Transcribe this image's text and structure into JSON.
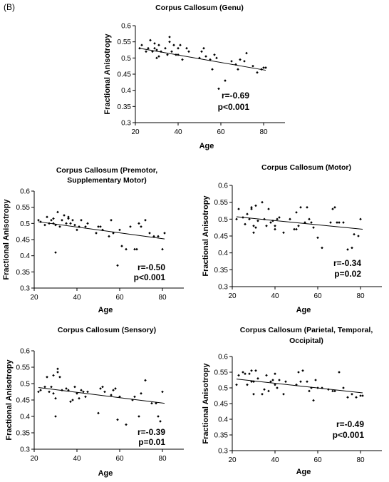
{
  "figure": {
    "panel_label": "(B)"
  },
  "chart_data": [
    {
      "type": "scatter",
      "title": [
        "Corpus Callosum (Genu)"
      ],
      "xlabel": "Age",
      "ylabel": "Fractional Anisotropy",
      "xlim": [
        20,
        90
      ],
      "ylim": [
        0.3,
        0.6
      ],
      "xticks": [
        20,
        40,
        60,
        80
      ],
      "yticks": [
        0.3,
        0.35,
        0.4,
        0.45,
        0.5,
        0.55,
        0.6
      ],
      "yticklabels": [
        "0.3",
        "0.35",
        "0.4",
        "0.45",
        "0.5",
        "0.55",
        "0.6"
      ],
      "stats": [
        "r=-0.69",
        "p<0.001"
      ],
      "trendline": {
        "x": [
          22,
          81
        ],
        "y": [
          0.53,
          0.462
        ]
      },
      "points": [
        [
          22,
          0.53
        ],
        [
          23,
          0.54
        ],
        [
          25,
          0.52
        ],
        [
          26,
          0.53
        ],
        [
          27,
          0.555
        ],
        [
          28,
          0.52
        ],
        [
          29,
          0.53
        ],
        [
          29,
          0.545
        ],
        [
          30,
          0.525
        ],
        [
          30,
          0.5
        ],
        [
          31,
          0.54
        ],
        [
          31,
          0.505
        ],
        [
          32,
          0.52
        ],
        [
          34,
          0.53
        ],
        [
          35,
          0.51
        ],
        [
          36,
          0.565
        ],
        [
          36,
          0.55
        ],
        [
          37,
          0.52
        ],
        [
          38,
          0.54
        ],
        [
          39,
          0.51
        ],
        [
          40,
          0.51
        ],
        [
          40,
          0.53
        ],
        [
          41,
          0.54
        ],
        [
          42,
          0.495
        ],
        [
          44,
          0.53
        ],
        [
          45,
          0.52
        ],
        [
          50,
          0.5
        ],
        [
          51,
          0.52
        ],
        [
          52,
          0.53
        ],
        [
          53,
          0.505
        ],
        [
          55,
          0.495
        ],
        [
          56,
          0.465
        ],
        [
          57,
          0.51
        ],
        [
          58,
          0.5
        ],
        [
          59,
          0.405
        ],
        [
          62,
          0.43
        ],
        [
          65,
          0.49
        ],
        [
          67,
          0.48
        ],
        [
          68,
          0.465
        ],
        [
          69,
          0.495
        ],
        [
          71,
          0.49
        ],
        [
          72,
          0.515
        ],
        [
          75,
          0.475
        ],
        [
          77,
          0.455
        ],
        [
          79,
          0.465
        ],
        [
          80,
          0.47
        ],
        [
          81,
          0.47
        ]
      ]
    },
    {
      "type": "scatter",
      "title": [
        "Corpus Callosum (Premotor,",
        "Supplementary Motor)"
      ],
      "xlabel": "Age",
      "ylabel": "Fractional Anisotropy",
      "xlim": [
        20,
        90
      ],
      "ylim": [
        0.3,
        0.6
      ],
      "xticks": [
        20,
        40,
        60,
        80
      ],
      "yticks": [
        0.3,
        0.35,
        0.4,
        0.45,
        0.5,
        0.55,
        0.6
      ],
      "yticklabels": [
        "0.3",
        "0.35",
        "0.4",
        "0.45",
        "0.5",
        "0.55",
        "0.6"
      ],
      "stats": [
        "r=-0.50",
        "p<0.001"
      ],
      "trendline": {
        "x": [
          22,
          81
        ],
        "y": [
          0.505,
          0.452
        ]
      },
      "points": [
        [
          22,
          0.51
        ],
        [
          23,
          0.505
        ],
        [
          25,
          0.495
        ],
        [
          26,
          0.52
        ],
        [
          27,
          0.5
        ],
        [
          28,
          0.51
        ],
        [
          29,
          0.515
        ],
        [
          29,
          0.5
        ],
        [
          30,
          0.495
        ],
        [
          30,
          0.41
        ],
        [
          31,
          0.535
        ],
        [
          32,
          0.49
        ],
        [
          33,
          0.51
        ],
        [
          34,
          0.525
        ],
        [
          35,
          0.5
        ],
        [
          36,
          0.515
        ],
        [
          36,
          0.52
        ],
        [
          37,
          0.5
        ],
        [
          38,
          0.51
        ],
        [
          39,
          0.495
        ],
        [
          40,
          0.48
        ],
        [
          41,
          0.49
        ],
        [
          42,
          0.51
        ],
        [
          44,
          0.49
        ],
        [
          45,
          0.5
        ],
        [
          49,
          0.47
        ],
        [
          50,
          0.49
        ],
        [
          51,
          0.49
        ],
        [
          52,
          0.48
        ],
        [
          55,
          0.46
        ],
        [
          56,
          0.51
        ],
        [
          57,
          0.47
        ],
        [
          59,
          0.37
        ],
        [
          60,
          0.48
        ],
        [
          61,
          0.43
        ],
        [
          63,
          0.42
        ],
        [
          65,
          0.49
        ],
        [
          67,
          0.42
        ],
        [
          68,
          0.42
        ],
        [
          69,
          0.5
        ],
        [
          70,
          0.49
        ],
        [
          72,
          0.51
        ],
        [
          74,
          0.47
        ],
        [
          76,
          0.46
        ],
        [
          78,
          0.46
        ],
        [
          80,
          0.42
        ],
        [
          81,
          0.47
        ]
      ]
    },
    {
      "type": "scatter",
      "title": [
        "Corpus Callosum (Motor)"
      ],
      "xlabel": "Age",
      "ylabel": "Fractional Anisotropy",
      "xlim": [
        20,
        90
      ],
      "ylim": [
        0.3,
        0.6
      ],
      "xticks": [
        20,
        40,
        60,
        80
      ],
      "yticks": [
        0.3,
        0.35,
        0.4,
        0.45,
        0.5,
        0.55,
        0.6
      ],
      "yticklabels": [
        "0.3",
        "0.35",
        "0.4",
        "0.45",
        "0.5",
        "0.55",
        "0.6"
      ],
      "stats": [
        "r=-0.34",
        "p=0.02"
      ],
      "trendline": {
        "x": [
          22,
          81
        ],
        "y": [
          0.507,
          0.47
        ]
      },
      "points": [
        [
          22,
          0.5
        ],
        [
          23,
          0.53
        ],
        [
          25,
          0.505
        ],
        [
          26,
          0.485
        ],
        [
          27,
          0.515
        ],
        [
          28,
          0.5
        ],
        [
          29,
          0.535
        ],
        [
          29,
          0.53
        ],
        [
          30,
          0.48
        ],
        [
          30,
          0.46
        ],
        [
          31,
          0.54
        ],
        [
          31,
          0.475
        ],
        [
          32,
          0.495
        ],
        [
          34,
          0.55
        ],
        [
          35,
          0.5
        ],
        [
          36,
          0.48
        ],
        [
          37,
          0.53
        ],
        [
          38,
          0.49
        ],
        [
          39,
          0.495
        ],
        [
          40,
          0.47
        ],
        [
          40,
          0.48
        ],
        [
          41,
          0.5
        ],
        [
          42,
          0.505
        ],
        [
          44,
          0.46
        ],
        [
          47,
          0.5
        ],
        [
          49,
          0.47
        ],
        [
          50,
          0.52
        ],
        [
          50,
          0.47
        ],
        [
          51,
          0.48
        ],
        [
          52,
          0.535
        ],
        [
          54,
          0.49
        ],
        [
          55,
          0.535
        ],
        [
          56,
          0.5
        ],
        [
          57,
          0.49
        ],
        [
          58,
          0.475
        ],
        [
          60,
          0.445
        ],
        [
          62,
          0.415
        ],
        [
          66,
          0.49
        ],
        [
          67,
          0.53
        ],
        [
          68,
          0.535
        ],
        [
          69,
          0.49
        ],
        [
          70,
          0.49
        ],
        [
          72,
          0.49
        ],
        [
          74,
          0.41
        ],
        [
          76,
          0.415
        ],
        [
          77,
          0.455
        ],
        [
          79,
          0.45
        ],
        [
          80,
          0.5
        ]
      ]
    },
    {
      "type": "scatter",
      "title": [
        "Corpus Callosum (Sensory)"
      ],
      "xlabel": "Age",
      "ylabel": "Fractional Anisotropy",
      "xlim": [
        20,
        90
      ],
      "ylim": [
        0.3,
        0.6
      ],
      "xticks": [
        20,
        40,
        60,
        80
      ],
      "yticks": [
        0.3,
        0.35,
        0.4,
        0.45,
        0.5,
        0.55,
        0.6
      ],
      "yticklabels": [
        "0.3",
        "0.35",
        "0.4",
        "0.45",
        "0.5",
        "0.55",
        "0.6"
      ],
      "stats": [
        "r=-0.39",
        "p=0.01"
      ],
      "trendline": {
        "x": [
          22,
          81
        ],
        "y": [
          0.488,
          0.44
        ]
      },
      "points": [
        [
          22,
          0.475
        ],
        [
          23,
          0.48
        ],
        [
          25,
          0.49
        ],
        [
          26,
          0.52
        ],
        [
          27,
          0.475
        ],
        [
          28,
          0.49
        ],
        [
          29,
          0.525
        ],
        [
          29,
          0.47
        ],
        [
          30,
          0.455
        ],
        [
          30,
          0.4
        ],
        [
          31,
          0.535
        ],
        [
          31,
          0.545
        ],
        [
          32,
          0.52
        ],
        [
          33,
          0.48
        ],
        [
          35,
          0.485
        ],
        [
          36,
          0.48
        ],
        [
          37,
          0.445
        ],
        [
          38,
          0.45
        ],
        [
          39,
          0.49
        ],
        [
          40,
          0.47
        ],
        [
          41,
          0.455
        ],
        [
          42,
          0.48
        ],
        [
          43,
          0.475
        ],
        [
          44,
          0.46
        ],
        [
          45,
          0.475
        ],
        [
          50,
          0.41
        ],
        [
          51,
          0.485
        ],
        [
          52,
          0.49
        ],
        [
          53,
          0.475
        ],
        [
          56,
          0.465
        ],
        [
          57,
          0.48
        ],
        [
          58,
          0.485
        ],
        [
          59,
          0.39
        ],
        [
          60,
          0.46
        ],
        [
          63,
          0.375
        ],
        [
          66,
          0.45
        ],
        [
          67,
          0.46
        ],
        [
          69,
          0.4
        ],
        [
          70,
          0.47
        ],
        [
          72,
          0.51
        ],
        [
          75,
          0.44
        ],
        [
          77,
          0.44
        ],
        [
          78,
          0.4
        ],
        [
          79,
          0.385
        ],
        [
          80,
          0.475
        ]
      ]
    },
    {
      "type": "scatter",
      "title": [
        "Corpus Callosum (Parietal, Temporal,",
        "Occipital)"
      ],
      "xlabel": "Age",
      "ylabel": "Fractional Anisotropy",
      "xlim": [
        20,
        90
      ],
      "ylim": [
        0.3,
        0.6
      ],
      "xticks": [
        20,
        40,
        60,
        80
      ],
      "yticks": [
        0.3,
        0.35,
        0.4,
        0.45,
        0.5,
        0.55,
        0.6
      ],
      "yticklabels": [
        "0.3",
        "0.35",
        "0.4",
        "0.45",
        "0.5",
        "0.55",
        "0.6"
      ],
      "stats": [
        "r=-0.49",
        "p<0.001"
      ],
      "trendline": {
        "x": [
          22,
          81
        ],
        "y": [
          0.528,
          0.484
        ]
      },
      "points": [
        [
          22,
          0.51
        ],
        [
          23,
          0.54
        ],
        [
          25,
          0.55
        ],
        [
          26,
          0.545
        ],
        [
          27,
          0.51
        ],
        [
          28,
          0.545
        ],
        [
          29,
          0.555
        ],
        [
          29,
          0.52
        ],
        [
          30,
          0.52
        ],
        [
          30,
          0.48
        ],
        [
          31,
          0.555
        ],
        [
          32,
          0.53
        ],
        [
          34,
          0.48
        ],
        [
          35,
          0.495
        ],
        [
          36,
          0.54
        ],
        [
          37,
          0.49
        ],
        [
          38,
          0.52
        ],
        [
          39,
          0.525
        ],
        [
          40,
          0.545
        ],
        [
          40,
          0.51
        ],
        [
          41,
          0.5
        ],
        [
          42,
          0.525
        ],
        [
          44,
          0.48
        ],
        [
          45,
          0.52
        ],
        [
          50,
          0.51
        ],
        [
          51,
          0.55
        ],
        [
          52,
          0.52
        ],
        [
          53,
          0.555
        ],
        [
          55,
          0.52
        ],
        [
          56,
          0.49
        ],
        [
          57,
          0.5
        ],
        [
          58,
          0.46
        ],
        [
          59,
          0.525
        ],
        [
          60,
          0.5
        ],
        [
          62,
          0.5
        ],
        [
          65,
          0.495
        ],
        [
          67,
          0.49
        ],
        [
          68,
          0.49
        ],
        [
          70,
          0.55
        ],
        [
          72,
          0.5
        ],
        [
          74,
          0.47
        ],
        [
          76,
          0.48
        ],
        [
          78,
          0.47
        ],
        [
          80,
          0.475
        ],
        [
          81,
          0.475
        ]
      ]
    }
  ]
}
